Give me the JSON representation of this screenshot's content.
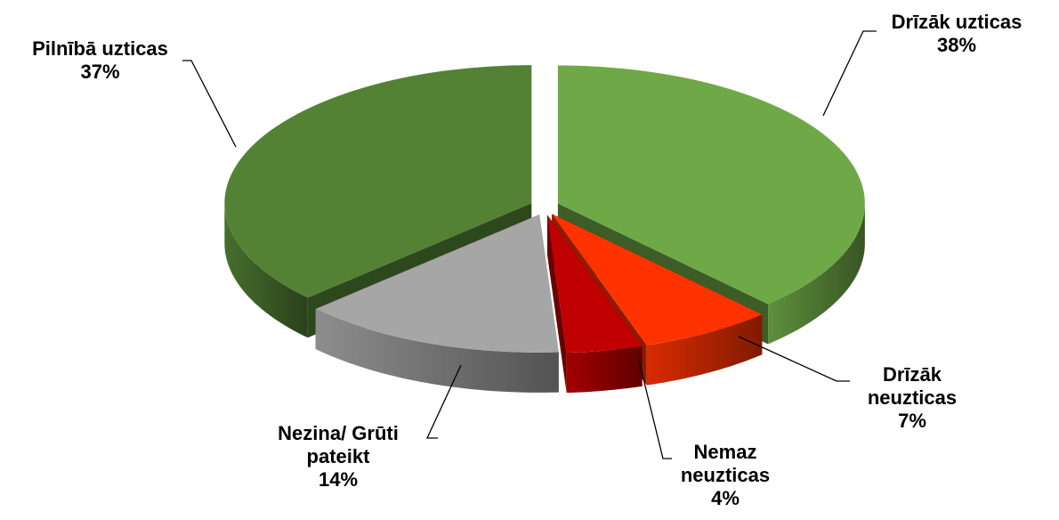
{
  "chart_data": {
    "type": "pie",
    "categories": [
      "Drīzāk uzticas",
      "Drīzāk neuzticas",
      "Nemaz neuzticas",
      "Nezina/ Grūti pateikt",
      "Pilnībā uzticas"
    ],
    "values": [
      38,
      7,
      4,
      14,
      37
    ],
    "value_labels": [
      "38%",
      "7%",
      "4%",
      "14%",
      "37%"
    ],
    "colors": [
      "#6fa947",
      "#ff3300",
      "#c00000",
      "#a6a6a6",
      "#548235"
    ]
  }
}
